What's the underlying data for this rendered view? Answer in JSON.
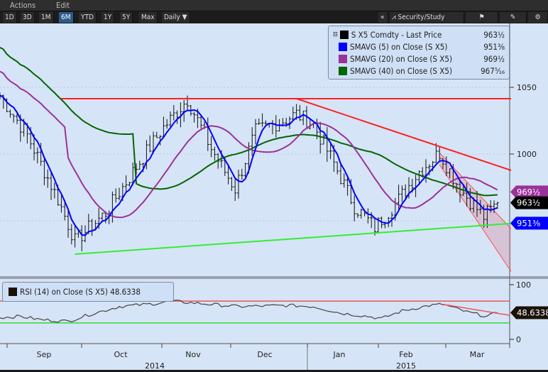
{
  "menu": {
    "actions": "Actions",
    "edit": "Edit"
  },
  "toolbar": {
    "periods": [
      "1D",
      "3D",
      "1M",
      "6M",
      "YTD",
      "1Y",
      "5Y",
      "Max"
    ],
    "active": "6M",
    "frequency": "Daily ▼",
    "collapse": "«",
    "security_study": "Security/Study",
    "flag_icon": "flag",
    "edit_icon": "pencil",
    "settings_icon": "gear"
  },
  "legend": {
    "items": [
      {
        "label": "S X5 Comdty - Last Price",
        "value": "963½",
        "color": "#000000"
      },
      {
        "label": "SMAVG (5) on Close (S X5)",
        "value": "951⅜",
        "color": "#0000ff"
      },
      {
        "label": "SMAVG (20) on Close (S X5)",
        "value": "969½",
        "color": "#993399"
      },
      {
        "label": "SMAVG (40) on Close (S X5)",
        "value": "967⁵⁄₁₆",
        "color": "#006600"
      }
    ]
  },
  "tags": {
    "sma20": "969½",
    "last": "963½",
    "sma5": "951⅜",
    "rsi": "48.6338"
  },
  "rsi_legend": "RSI (14) on Close (S X5) 48.6338",
  "chart_data": {
    "type": "line",
    "title": "S X5 Comdty",
    "price_axis": {
      "ticks": [
        1050,
        1000
      ],
      "range": [
        900,
        1100
      ]
    },
    "rsi_axis": {
      "ticks": [
        100,
        0
      ],
      "levels": [
        70,
        30
      ]
    },
    "months": [
      "Sep",
      "Oct",
      "Nov",
      "Dec",
      "Jan",
      "Feb",
      "Mar"
    ],
    "years": [
      "2014",
      "2015"
    ],
    "price_keypoints": [
      [
        0,
        1044
      ],
      [
        8,
        1014
      ],
      [
        17,
        966
      ],
      [
        22,
        935
      ],
      [
        31,
        956
      ],
      [
        42,
        998
      ],
      [
        48,
        1020
      ],
      [
        55,
        1041
      ],
      [
        62,
        1004
      ],
      [
        69,
        974
      ],
      [
        75,
        1017
      ],
      [
        83,
        1025
      ],
      [
        87,
        1030
      ],
      [
        92,
        1022
      ],
      [
        98,
        993
      ],
      [
        104,
        961
      ],
      [
        110,
        945
      ],
      [
        117,
        966
      ],
      [
        123,
        987
      ],
      [
        129,
        1001
      ],
      [
        135,
        974
      ],
      [
        142,
        953
      ],
      [
        146,
        963.5
      ]
    ],
    "rsi_keypoints": [
      [
        0,
        40
      ],
      [
        6,
        42
      ],
      [
        12,
        36
      ],
      [
        20,
        33
      ],
      [
        26,
        45
      ],
      [
        35,
        60
      ],
      [
        45,
        65
      ],
      [
        50,
        70
      ],
      [
        58,
        66
      ],
      [
        70,
        60
      ],
      [
        85,
        62
      ],
      [
        92,
        60
      ],
      [
        100,
        48
      ],
      [
        108,
        42
      ],
      [
        112,
        38
      ],
      [
        118,
        52
      ],
      [
        126,
        62
      ],
      [
        130,
        64
      ],
      [
        137,
        50
      ],
      [
        143,
        42
      ],
      [
        146,
        48.63
      ]
    ],
    "trendlines": [
      {
        "name": "resistance",
        "color": "#ff2020",
        "from": [
          18,
          1041.5
        ],
        "to": [
          150,
          1041.5
        ]
      },
      {
        "name": "downtrend",
        "color": "#ff2020",
        "from": [
          87,
          1041.5
        ],
        "to": [
          150,
          987.8
        ]
      },
      {
        "name": "support",
        "color": "#33ee33",
        "from": [
          22,
          925
        ],
        "to": [
          150,
          948
        ]
      }
    ]
  }
}
